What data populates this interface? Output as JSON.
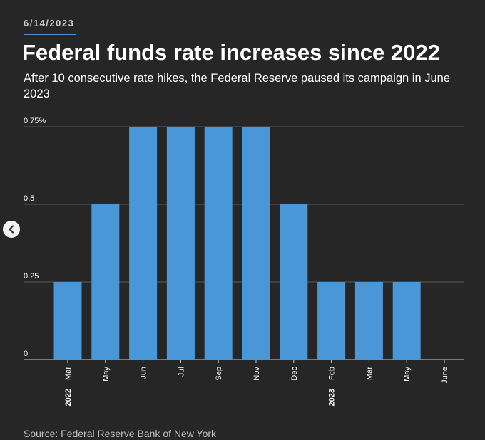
{
  "header": {
    "date": "6/14/2023",
    "title": "Federal funds rate increases since 2022",
    "subtitle": "After 10 consecutive rate hikes, the Federal Reserve paused its campaign in June 2023"
  },
  "footer": {
    "source": "Source: Federal Reserve Bank of New York"
  },
  "nav": {
    "icon": "chevron-left-icon"
  },
  "colors": {
    "background": "#262626",
    "bar": "#4a97d8",
    "grid": "#5a5a5a",
    "text": "#ffffff"
  },
  "chart_data": {
    "type": "bar",
    "title": "Federal funds rate increases since 2022",
    "xlabel": "",
    "ylabel": "",
    "categories": [
      "Mar",
      "May",
      "Jun",
      "Jul",
      "Sep",
      "Nov",
      "Dec",
      "Feb",
      "Mar",
      "May",
      "June"
    ],
    "year_labels": [
      {
        "category_index": 0,
        "label": "2022"
      },
      {
        "category_index": 7,
        "label": "2023"
      }
    ],
    "values": [
      0.25,
      0.5,
      0.75,
      0.75,
      0.75,
      0.75,
      0.5,
      0.25,
      0.25,
      0.25,
      0
    ],
    "ylim": [
      0,
      0.75
    ],
    "yticks": [
      0,
      0.25,
      0.5,
      0.75
    ],
    "ytick_labels": [
      "0",
      "0.25",
      "0.5",
      "0.75%"
    ],
    "grid": true,
    "legend": "none"
  }
}
